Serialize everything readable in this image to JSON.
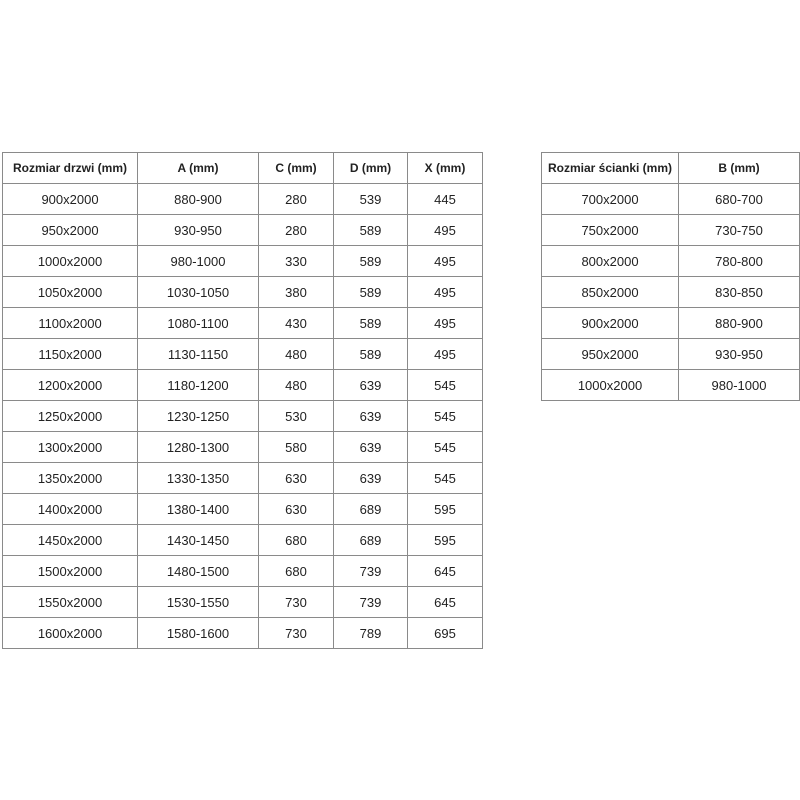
{
  "door_table": {
    "headers": [
      "Rozmiar drzwi (mm)",
      "A (mm)",
      "C (mm)",
      "D (mm)",
      "X (mm)"
    ],
    "rows": [
      [
        "900x2000",
        "880-900",
        280,
        539,
        445
      ],
      [
        "950x2000",
        "930-950",
        280,
        589,
        495
      ],
      [
        "1000x2000",
        "980-1000",
        330,
        589,
        495
      ],
      [
        "1050x2000",
        "1030-1050",
        380,
        589,
        495
      ],
      [
        "1100x2000",
        "1080-1100",
        430,
        589,
        495
      ],
      [
        "1150x2000",
        "1130-1150",
        480,
        589,
        495
      ],
      [
        "1200x2000",
        "1180-1200",
        480,
        639,
        545
      ],
      [
        "1250x2000",
        "1230-1250",
        530,
        639,
        545
      ],
      [
        "1300x2000",
        "1280-1300",
        580,
        639,
        545
      ],
      [
        "1350x2000",
        "1330-1350",
        630,
        639,
        545
      ],
      [
        "1400x2000",
        "1380-1400",
        630,
        689,
        595
      ],
      [
        "1450x2000",
        "1430-1450",
        680,
        689,
        595
      ],
      [
        "1500x2000",
        "1480-1500",
        680,
        739,
        645
      ],
      [
        "1550x2000",
        "1530-1550",
        730,
        739,
        645
      ],
      [
        "1600x2000",
        "1580-1600",
        730,
        789,
        695
      ]
    ]
  },
  "wall_table": {
    "headers": [
      "Rozmiar ścianki (mm)",
      "B (mm)"
    ],
    "rows": [
      [
        "700x2000",
        "680-700"
      ],
      [
        "750x2000",
        "730-750"
      ],
      [
        "800x2000",
        "780-800"
      ],
      [
        "850x2000",
        "830-850"
      ],
      [
        "900x2000",
        "880-900"
      ],
      [
        "950x2000",
        "930-950"
      ],
      [
        "1000x2000",
        "980-1000"
      ]
    ]
  }
}
